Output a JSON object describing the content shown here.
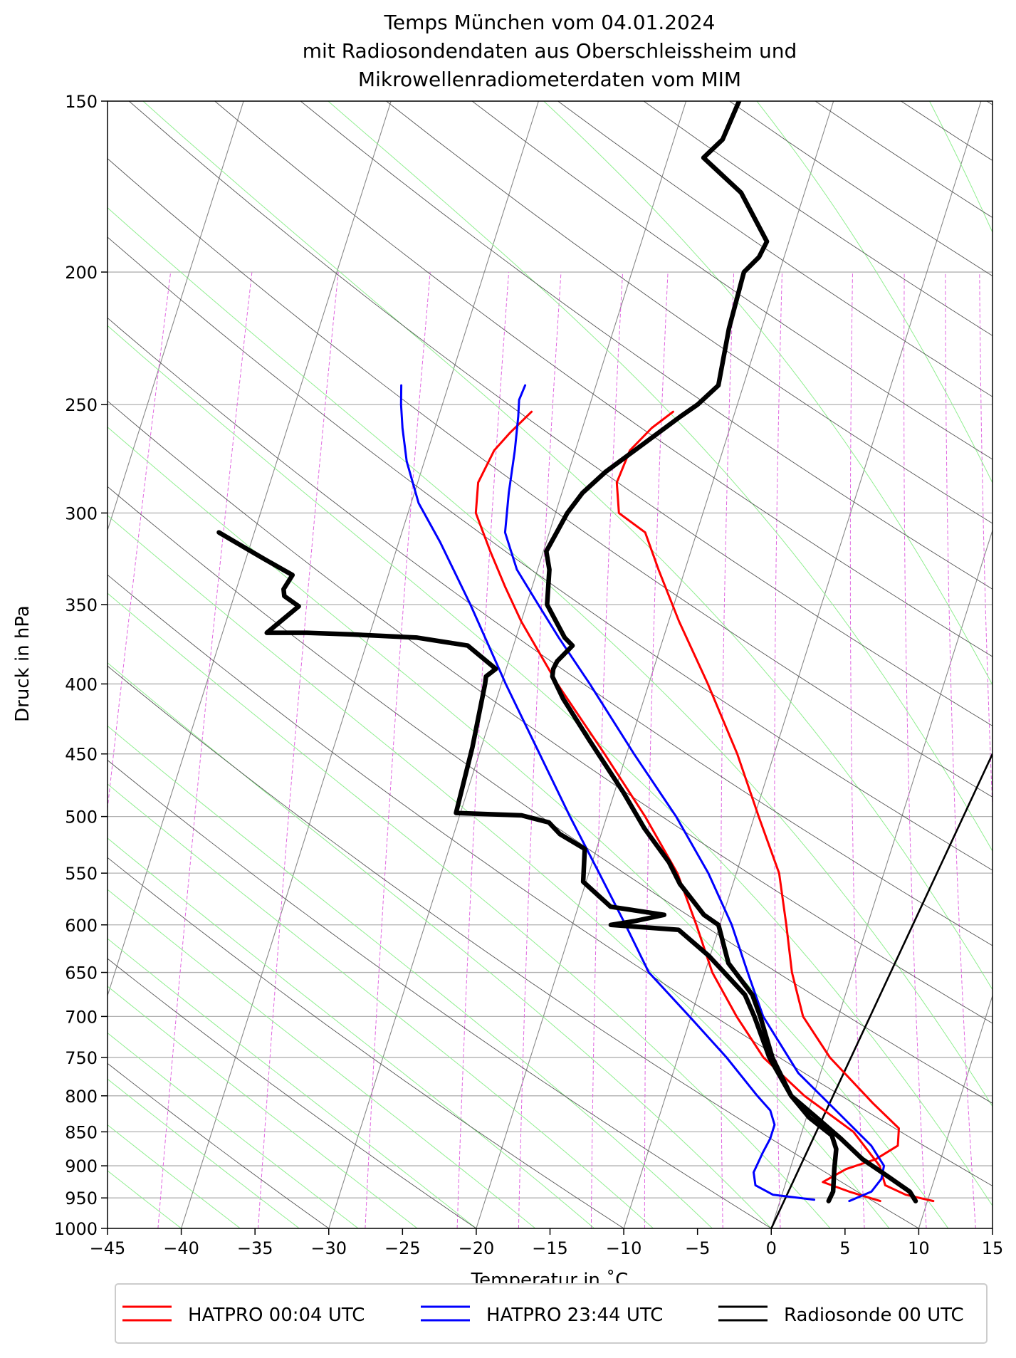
{
  "chart_data": {
    "type": "line",
    "subtype": "skew-T log-p diagram",
    "title_lines": [
      "Temps München vom 04.01.2024",
      "mit Radiosondendaten aus Oberschleissheim und",
      "Mikrowellenradiometerdaten vom MIM"
    ],
    "xlabel": "Temperatur in ˚C",
    "ylabel": "Druck in hPa",
    "xlim": [
      -45,
      15
    ],
    "ylim": [
      1000,
      150
    ],
    "y_scale": "log",
    "grid": true,
    "legend_position": "bottom",
    "x_ticks": [
      "−45",
      "−40",
      "−35",
      "−30",
      "−25",
      "−20",
      "−15",
      "−10",
      "−5",
      "0",
      "5",
      "10",
      "15"
    ],
    "y_ticks": [
      "150",
      "200",
      "250",
      "300",
      "350",
      "400",
      "450",
      "500",
      "550",
      "600",
      "650",
      "700",
      "750",
      "800",
      "850",
      "900",
      "950",
      "1000"
    ],
    "series": [
      {
        "name": "HATPRO 00:04 UTC",
        "color": "#ff0000",
        "kind": "temperature",
        "points": [
          [
            6.8,
            955
          ],
          [
            4.5,
            940
          ],
          [
            2.5,
            925
          ],
          [
            3.8,
            905
          ],
          [
            5.6,
            890
          ],
          [
            6.8,
            870
          ],
          [
            6.5,
            845
          ],
          [
            4.2,
            810
          ],
          [
            0.3,
            750
          ],
          [
            -2.4,
            700
          ],
          [
            -4.1,
            650
          ],
          [
            -5.5,
            600
          ],
          [
            -7.1,
            550
          ],
          [
            -9.7,
            500
          ],
          [
            -12.5,
            450
          ],
          [
            -16,
            400
          ],
          [
            -19.3,
            360
          ],
          [
            -21.8,
            330
          ],
          [
            -23.5,
            310
          ],
          [
            -25.7,
            300
          ],
          [
            -26.5,
            285
          ],
          [
            -26.3,
            270
          ],
          [
            -25.3,
            260
          ],
          [
            -24.2,
            253
          ]
        ]
      },
      {
        "name": "HATPRO 00:04 UTC",
        "color": "#ff0000",
        "kind": "dew point",
        "points": [
          [
            10.4,
            955
          ],
          [
            8.4,
            945
          ],
          [
            6.8,
            930
          ],
          [
            6,
            900
          ],
          [
            3.5,
            850
          ],
          [
            -0.6,
            800
          ],
          [
            -4.2,
            750
          ],
          [
            -6.9,
            700
          ],
          [
            -9.5,
            650
          ],
          [
            -11.6,
            600
          ],
          [
            -14,
            550
          ],
          [
            -17.4,
            500
          ],
          [
            -21.5,
            450
          ],
          [
            -26.2,
            400
          ],
          [
            -30,
            360
          ],
          [
            -31.8,
            340
          ],
          [
            -33.6,
            320
          ],
          [
            -35.4,
            300
          ],
          [
            -35.9,
            285
          ],
          [
            -35.5,
            270
          ],
          [
            -34.8,
            262
          ],
          [
            -33.8,
            253
          ]
        ]
      },
      {
        "name": "HATPRO 23:44 UTC",
        "color": "#0000ff",
        "kind": "temperature",
        "points": [
          [
            4.7,
            955
          ],
          [
            6,
            940
          ],
          [
            6.4,
            920
          ],
          [
            6.3,
            900
          ],
          [
            5,
            870
          ],
          [
            2.5,
            830
          ],
          [
            -1.5,
            770
          ],
          [
            -5.1,
            700
          ],
          [
            -7.1,
            650
          ],
          [
            -9.2,
            600
          ],
          [
            -11.9,
            550
          ],
          [
            -15.3,
            500
          ],
          [
            -19.5,
            450
          ],
          [
            -24,
            400
          ],
          [
            -27.1,
            370
          ],
          [
            -29.2,
            350
          ],
          [
            -31.4,
            330
          ],
          [
            -33,
            310
          ],
          [
            -33.6,
            290
          ],
          [
            -34.1,
            270
          ],
          [
            -34.6,
            255
          ],
          [
            -34.9,
            248
          ],
          [
            -34.8,
            242
          ]
        ]
      },
      {
        "name": "HATPRO 23:44 UTC",
        "color": "#0000ff",
        "kind": "dew point",
        "points": [
          [
            2.3,
            953
          ],
          [
            -0.6,
            945
          ],
          [
            -2,
            930
          ],
          [
            -2.4,
            910
          ],
          [
            -2.2,
            880
          ],
          [
            -2,
            860
          ],
          [
            -2,
            840
          ],
          [
            -2.6,
            820
          ],
          [
            -3.8,
            800
          ],
          [
            -6.7,
            750
          ],
          [
            -10.1,
            700
          ],
          [
            -13.8,
            650
          ],
          [
            -16.4,
            600
          ],
          [
            -19.3,
            550
          ],
          [
            -22.5,
            500
          ],
          [
            -25.9,
            450
          ],
          [
            -29.7,
            400
          ],
          [
            -33.8,
            350
          ],
          [
            -37.2,
            315
          ],
          [
            -39.5,
            295
          ],
          [
            -41.2,
            275
          ],
          [
            -42.2,
            260
          ],
          [
            -42.8,
            250
          ],
          [
            -43.2,
            242
          ]
        ]
      },
      {
        "name": "Radiosonde 00 UTC",
        "color": "#000000",
        "kind": "temperature",
        "points": [
          [
            9.2,
            955
          ],
          [
            8.6,
            940
          ],
          [
            6.7,
            915
          ],
          [
            4.7,
            890
          ],
          [
            2.8,
            860
          ],
          [
            0.7,
            830
          ],
          [
            -1.5,
            800
          ],
          [
            -3.6,
            750
          ],
          [
            -5.3,
            700
          ],
          [
            -6.3,
            675
          ],
          [
            -8.6,
            640
          ],
          [
            -10.1,
            600
          ],
          [
            -11.3,
            590
          ],
          [
            -13.6,
            560
          ],
          [
            -14.8,
            540
          ],
          [
            -17.2,
            510
          ],
          [
            -19.4,
            480
          ],
          [
            -22.8,
            440
          ],
          [
            -25.5,
            410
          ],
          [
            -26.7,
            395
          ],
          [
            -26.8,
            390
          ],
          [
            -26.7,
            385
          ],
          [
            -26,
            375
          ],
          [
            -26.7,
            370
          ],
          [
            -28.6,
            350
          ],
          [
            -29.2,
            330
          ],
          [
            -29.8,
            320
          ],
          [
            -29.5,
            310
          ],
          [
            -29.2,
            300
          ],
          [
            -28.6,
            290
          ],
          [
            -27.5,
            280
          ],
          [
            -25.2,
            265
          ],
          [
            -23.6,
            255
          ],
          [
            -22.7,
            250
          ],
          [
            -21.7,
            242
          ],
          [
            -22.2,
            220
          ],
          [
            -22.4,
            200
          ],
          [
            -21.7,
            195
          ],
          [
            -21.5,
            190
          ],
          [
            -24.3,
            175
          ],
          [
            -27.6,
            165
          ],
          [
            -26.7,
            160
          ],
          [
            -26.4,
            150
          ]
        ]
      },
      {
        "name": "Radiosonde 00 UTC",
        "color": "#000000",
        "kind": "dew point",
        "points": [
          [
            3.3,
            955
          ],
          [
            3.4,
            940
          ],
          [
            3,
            905
          ],
          [
            2.7,
            875
          ],
          [
            2.1,
            855
          ],
          [
            0.2,
            830
          ],
          [
            -1.5,
            800
          ],
          [
            -3.8,
            750
          ],
          [
            -5.7,
            700
          ],
          [
            -6.8,
            675
          ],
          [
            -10.1,
            632
          ],
          [
            -12.7,
            605
          ],
          [
            -17.4,
            600
          ],
          [
            -15.8,
            596
          ],
          [
            -14,
            590
          ],
          [
            -17.8,
            582
          ],
          [
            -20.2,
            558
          ],
          [
            -20.8,
            528
          ],
          [
            -22.8,
            515
          ],
          [
            -23.8,
            505
          ],
          [
            -25.8,
            499
          ],
          [
            -30.3,
            497
          ],
          [
            -30.6,
            445
          ],
          [
            -31.1,
            400
          ],
          [
            -31.2,
            395
          ],
          [
            -30.7,
            390
          ],
          [
            -33.1,
            375
          ],
          [
            -36.7,
            370
          ],
          [
            -41.2,
            368
          ],
          [
            -44.3,
            367
          ],
          [
            -47,
            367
          ],
          [
            -45.4,
            351
          ],
          [
            -46.6,
            345
          ],
          [
            -46.8,
            341
          ],
          [
            -46.5,
            333
          ],
          [
            -48.8,
            324
          ],
          [
            -51.1,
            315
          ],
          [
            -52.4,
            310
          ]
        ]
      }
    ],
    "reference_line": {
      "kind": "0 °C isotherm (shown as reference line)",
      "color": "#000000",
      "points": [
        [
          0,
          1000
        ],
        [
          15,
          450
        ]
      ]
    }
  },
  "legend": {
    "items": [
      {
        "label": "HATPRO 00:04 UTC",
        "color": "#ff0000"
      },
      {
        "label": "HATPRO 23:44 UTC",
        "color": "#0000ff"
      },
      {
        "label": "Radiosonde 00 UTC",
        "color": "#000000"
      }
    ]
  },
  "colors": {
    "grid": "#b0b0b0",
    "isotherms": "#888888",
    "dry_adiabats": "#555555",
    "moist_adiabats": "#90ee90",
    "mixing_ratio": "#e066e0"
  }
}
